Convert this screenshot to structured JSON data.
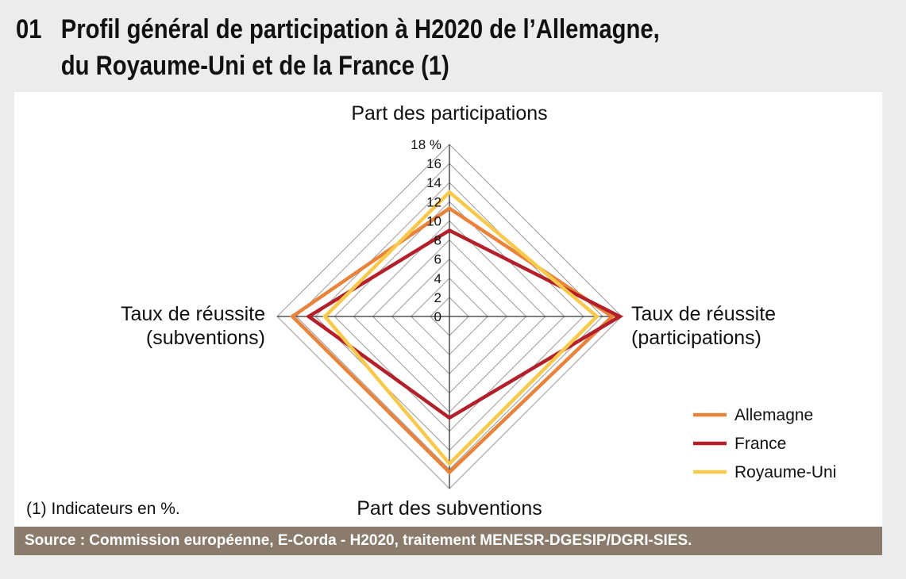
{
  "figure": {
    "number": "01",
    "title_line1": "Profil général de participation à H2020 de l’Allemagne,",
    "title_line2": "du Royaume-Uni et de la France (1)",
    "footnote": "(1) Indicateurs en %.",
    "source": "Source : Commission européenne, E-Corda - H2020, traitement MENESR-DGESIP/DGRI-SIES."
  },
  "chart_data": {
    "type": "radar",
    "axes": [
      {
        "key": "top",
        "label_lines": [
          "Part des participations"
        ]
      },
      {
        "key": "right",
        "label_lines": [
          "Taux de réussite",
          "(participations)"
        ]
      },
      {
        "key": "bottom",
        "label_lines": [
          "Part des subventions"
        ]
      },
      {
        "key": "left",
        "label_lines": [
          "Taux de réussite",
          "(subventions)"
        ]
      }
    ],
    "scale": {
      "min": 0,
      "max": 18,
      "step": 2
    },
    "tick_labels": [
      "0",
      "2",
      "4",
      "6",
      "8",
      "10",
      "12",
      "14",
      "16",
      "18 %"
    ],
    "grid": true,
    "legend_position": "bottom-right",
    "series": [
      {
        "name": "Allemagne",
        "color": "#e9823a",
        "values": [
          11.3,
          17.0,
          16.3,
          16.4
        ]
      },
      {
        "name": "France",
        "color": "#b3202a",
        "values": [
          9.0,
          17.8,
          10.6,
          14.7
        ]
      },
      {
        "name": "Royaume-Uni",
        "color": "#f8c94a",
        "values": [
          13.0,
          15.4,
          15.4,
          13.0
        ]
      }
    ]
  }
}
